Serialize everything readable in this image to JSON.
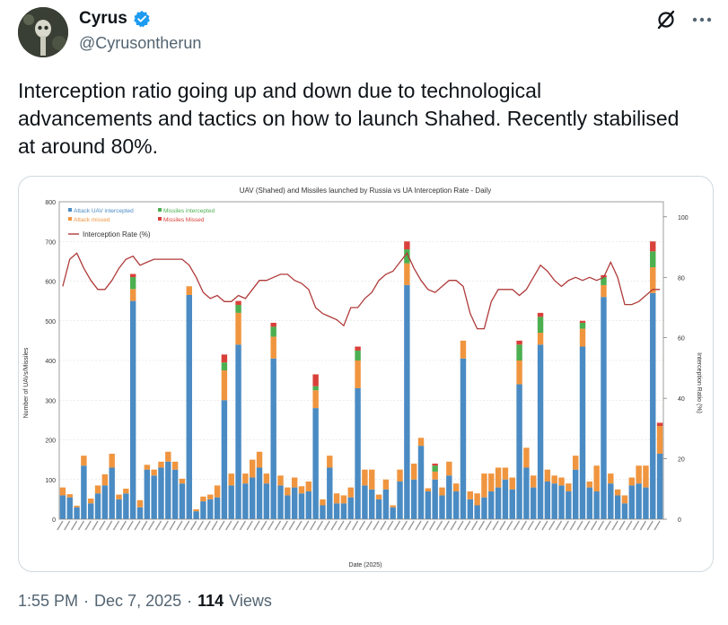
{
  "author": {
    "display_name": "Cyrus",
    "handle": "@Cyrusontherun",
    "verified": true
  },
  "actions": {
    "grok_icon": "grok-icon",
    "more_icon": "more-icon"
  },
  "tweet": {
    "text": "Interception ratio going up and down due to technological\nadvancements and tactics on how to launch Shahed. Recently stabilised\nat around 80%."
  },
  "meta": {
    "time": "1:55 PM",
    "sep1": "·",
    "date": "Dec 7, 2025",
    "sep2": "·",
    "views_count": "114",
    "views_label": "Views"
  },
  "colors": {
    "uav_intercepted": "#4a8bc3",
    "attack_missed": "#f0953f",
    "missiles_intercepted": "#4caf50",
    "missiles_missed": "#d9403a",
    "rate_line": "#b03a3a",
    "verified": "#1d9bf0"
  },
  "chart_data": {
    "type": "bar",
    "stacked": true,
    "title": "UAV (Shahed) and Missiles launched by Russia vs UA Interception Rate - Daily",
    "xlabel": "Date (2025)",
    "ylabel": "Number of UAVs/Missiles",
    "y2label": "Interception Ratio (%)",
    "ylim": [
      0,
      800
    ],
    "yticks": [
      0,
      100,
      200,
      300,
      400,
      500,
      600,
      700,
      800
    ],
    "y2lim": [
      0,
      105
    ],
    "y2ticks": [
      0,
      20,
      40,
      60,
      80,
      100
    ],
    "grid": true,
    "legend_position": "top-left",
    "legend": [
      "Attack UAV intercepted",
      "Attack missed",
      "Missiles intercepted",
      "Missiles Missed",
      "Interception Rate (%)"
    ],
    "series": [
      {
        "name": "Attack UAV intercepted",
        "values": [
          60,
          55,
          30,
          135,
          40,
          65,
          85,
          130,
          50,
          65,
          550,
          30,
          125,
          110,
          130,
          145,
          125,
          90,
          565,
          20,
          45,
          50,
          55,
          300,
          85,
          440,
          90,
          105,
          130,
          90,
          405,
          85,
          60,
          80,
          65,
          70,
          280,
          35,
          130,
          40,
          40,
          55,
          330,
          85,
          75,
          50,
          75,
          30,
          95,
          590,
          100,
          185,
          70,
          100,
          60,
          110,
          70,
          405,
          50,
          35,
          55,
          70,
          80,
          100,
          75,
          340,
          130,
          80,
          440,
          95,
          90,
          85,
          70,
          125,
          435,
          80,
          70,
          560,
          90,
          60,
          40,
          85,
          90,
          80,
          570,
          165
        ],
        "color": "#4a8bc3"
      },
      {
        "name": "Attack missed",
        "values": [
          20,
          8,
          4,
          25,
          12,
          20,
          28,
          35,
          12,
          12,
          30,
          18,
          12,
          15,
          15,
          25,
          20,
          12,
          22,
          5,
          12,
          12,
          30,
          75,
          30,
          80,
          25,
          45,
          40,
          25,
          55,
          25,
          20,
          25,
          18,
          25,
          45,
          15,
          30,
          25,
          20,
          25,
          70,
          40,
          50,
          12,
          25,
          5,
          30,
          55,
          40,
          20,
          8,
          20,
          20,
          35,
          20,
          45,
          20,
          30,
          60,
          45,
          50,
          30,
          30,
          60,
          50,
          30,
          30,
          30,
          20,
          20,
          20,
          35,
          45,
          15,
          65,
          30,
          25,
          15,
          20,
          20,
          45,
          55,
          65,
          70
        ],
        "color": "#f0953f"
      },
      {
        "name": "Missiles intercepted",
        "values": [
          0,
          0,
          0,
          0,
          0,
          0,
          0,
          0,
          0,
          0,
          30,
          0,
          0,
          0,
          0,
          0,
          0,
          0,
          0,
          0,
          0,
          0,
          0,
          20,
          0,
          20,
          0,
          0,
          0,
          0,
          25,
          0,
          0,
          0,
          0,
          0,
          10,
          0,
          0,
          0,
          0,
          0,
          25,
          0,
          0,
          0,
          0,
          0,
          0,
          35,
          0,
          0,
          0,
          15,
          0,
          0,
          0,
          0,
          0,
          0,
          0,
          0,
          0,
          0,
          0,
          40,
          0,
          0,
          40,
          0,
          0,
          0,
          0,
          0,
          15,
          0,
          0,
          20,
          0,
          0,
          0,
          0,
          0,
          0,
          40,
          0
        ],
        "color": "#4caf50"
      },
      {
        "name": "Missiles Missed",
        "values": [
          0,
          0,
          0,
          0,
          0,
          0,
          0,
          0,
          0,
          0,
          8,
          0,
          0,
          0,
          0,
          0,
          0,
          0,
          0,
          0,
          0,
          0,
          0,
          20,
          0,
          10,
          0,
          0,
          0,
          0,
          10,
          0,
          0,
          0,
          0,
          0,
          30,
          0,
          0,
          0,
          0,
          0,
          10,
          0,
          0,
          0,
          0,
          0,
          0,
          20,
          0,
          0,
          0,
          5,
          0,
          0,
          0,
          0,
          0,
          0,
          0,
          0,
          0,
          0,
          0,
          10,
          0,
          0,
          10,
          0,
          0,
          0,
          0,
          0,
          5,
          0,
          0,
          5,
          0,
          0,
          0,
          0,
          0,
          0,
          25,
          8
        ],
        "color": "#d9403a"
      },
      {
        "name": "Interception Rate (%)",
        "type": "line",
        "values": [
          77,
          86,
          88,
          83,
          79,
          76,
          76,
          79,
          83,
          86,
          87,
          84,
          85,
          86,
          86,
          86,
          86,
          86,
          84,
          80,
          75,
          73,
          74,
          72,
          72,
          74,
          73,
          76,
          79,
          79,
          80,
          81,
          81,
          79,
          78,
          76,
          70,
          68,
          67,
          66,
          64,
          70,
          70,
          73,
          75,
          79,
          81,
          82,
          85,
          88,
          83,
          79,
          76,
          75,
          77,
          79,
          79,
          77,
          68,
          63,
          63,
          72,
          76,
          76,
          76,
          74,
          76,
          80,
          84,
          82,
          79,
          77,
          79,
          80,
          79,
          80,
          79,
          80,
          85,
          80,
          71,
          71,
          72,
          74,
          76,
          76
        ],
        "color": "#b03a3a"
      }
    ]
  }
}
